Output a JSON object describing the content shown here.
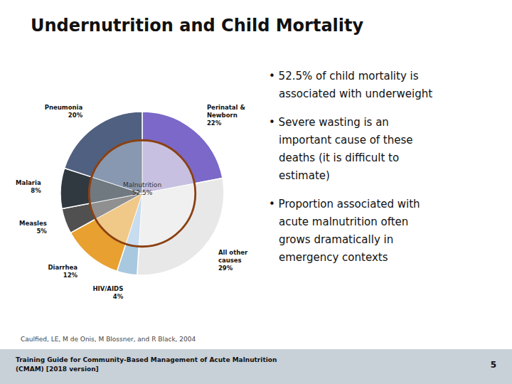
{
  "chart_data": {
    "type": "pie",
    "title": "Undernutrition and Child Mortality",
    "categories": [
      "Perinatal &\nNewborn",
      "All other\ncauses",
      "HIV/AIDS",
      "Diarrhea",
      "Measles",
      "Malaria",
      "Pneumonia"
    ],
    "series": [
      {
        "values": [
          22,
          29,
          4,
          12,
          5,
          8,
          20
        ],
        "colors": [
          "#7B68C8",
          "#E8E8E8",
          "#A8C8E0",
          "#E8A030",
          "#505050",
          "#303840",
          "#506080"
        ]
      },
      {
        "values": [
          22,
          29,
          4,
          12,
          5,
          8,
          20
        ],
        "colors": [
          "#C8C0E0",
          "#F0F0F0",
          "#C8DCF0",
          "#F0C888",
          "#909090",
          "#707880",
          "#8898B0"
        ]
      }
    ],
    "value_labels": [
      "22%",
      "29%",
      "4%",
      "12%",
      "5%",
      "8%",
      "20%"
    ],
    "data_labels": true,
    "center_label": "Malnutrition\n52.5%",
    "bullets": [
      [
        "• 52.5% of child mortality is",
        "associated with underweight"
      ],
      [
        "• Severe wasting is an",
        "important cause of these",
        "deaths (it is difficult to",
        "estimate)"
      ],
      [
        "• Proportion associated with",
        "acute malnutrition often",
        "grows dramatically in",
        "emergency contexts"
      ]
    ],
    "source": "Caulfied, LE, M de Onis, M Blossner, and R Black, 2004",
    "footer": "Training Guide for Community-Based Management of Acute Malnutrition\n(CMAM) [2018 version]",
    "page": "5"
  }
}
